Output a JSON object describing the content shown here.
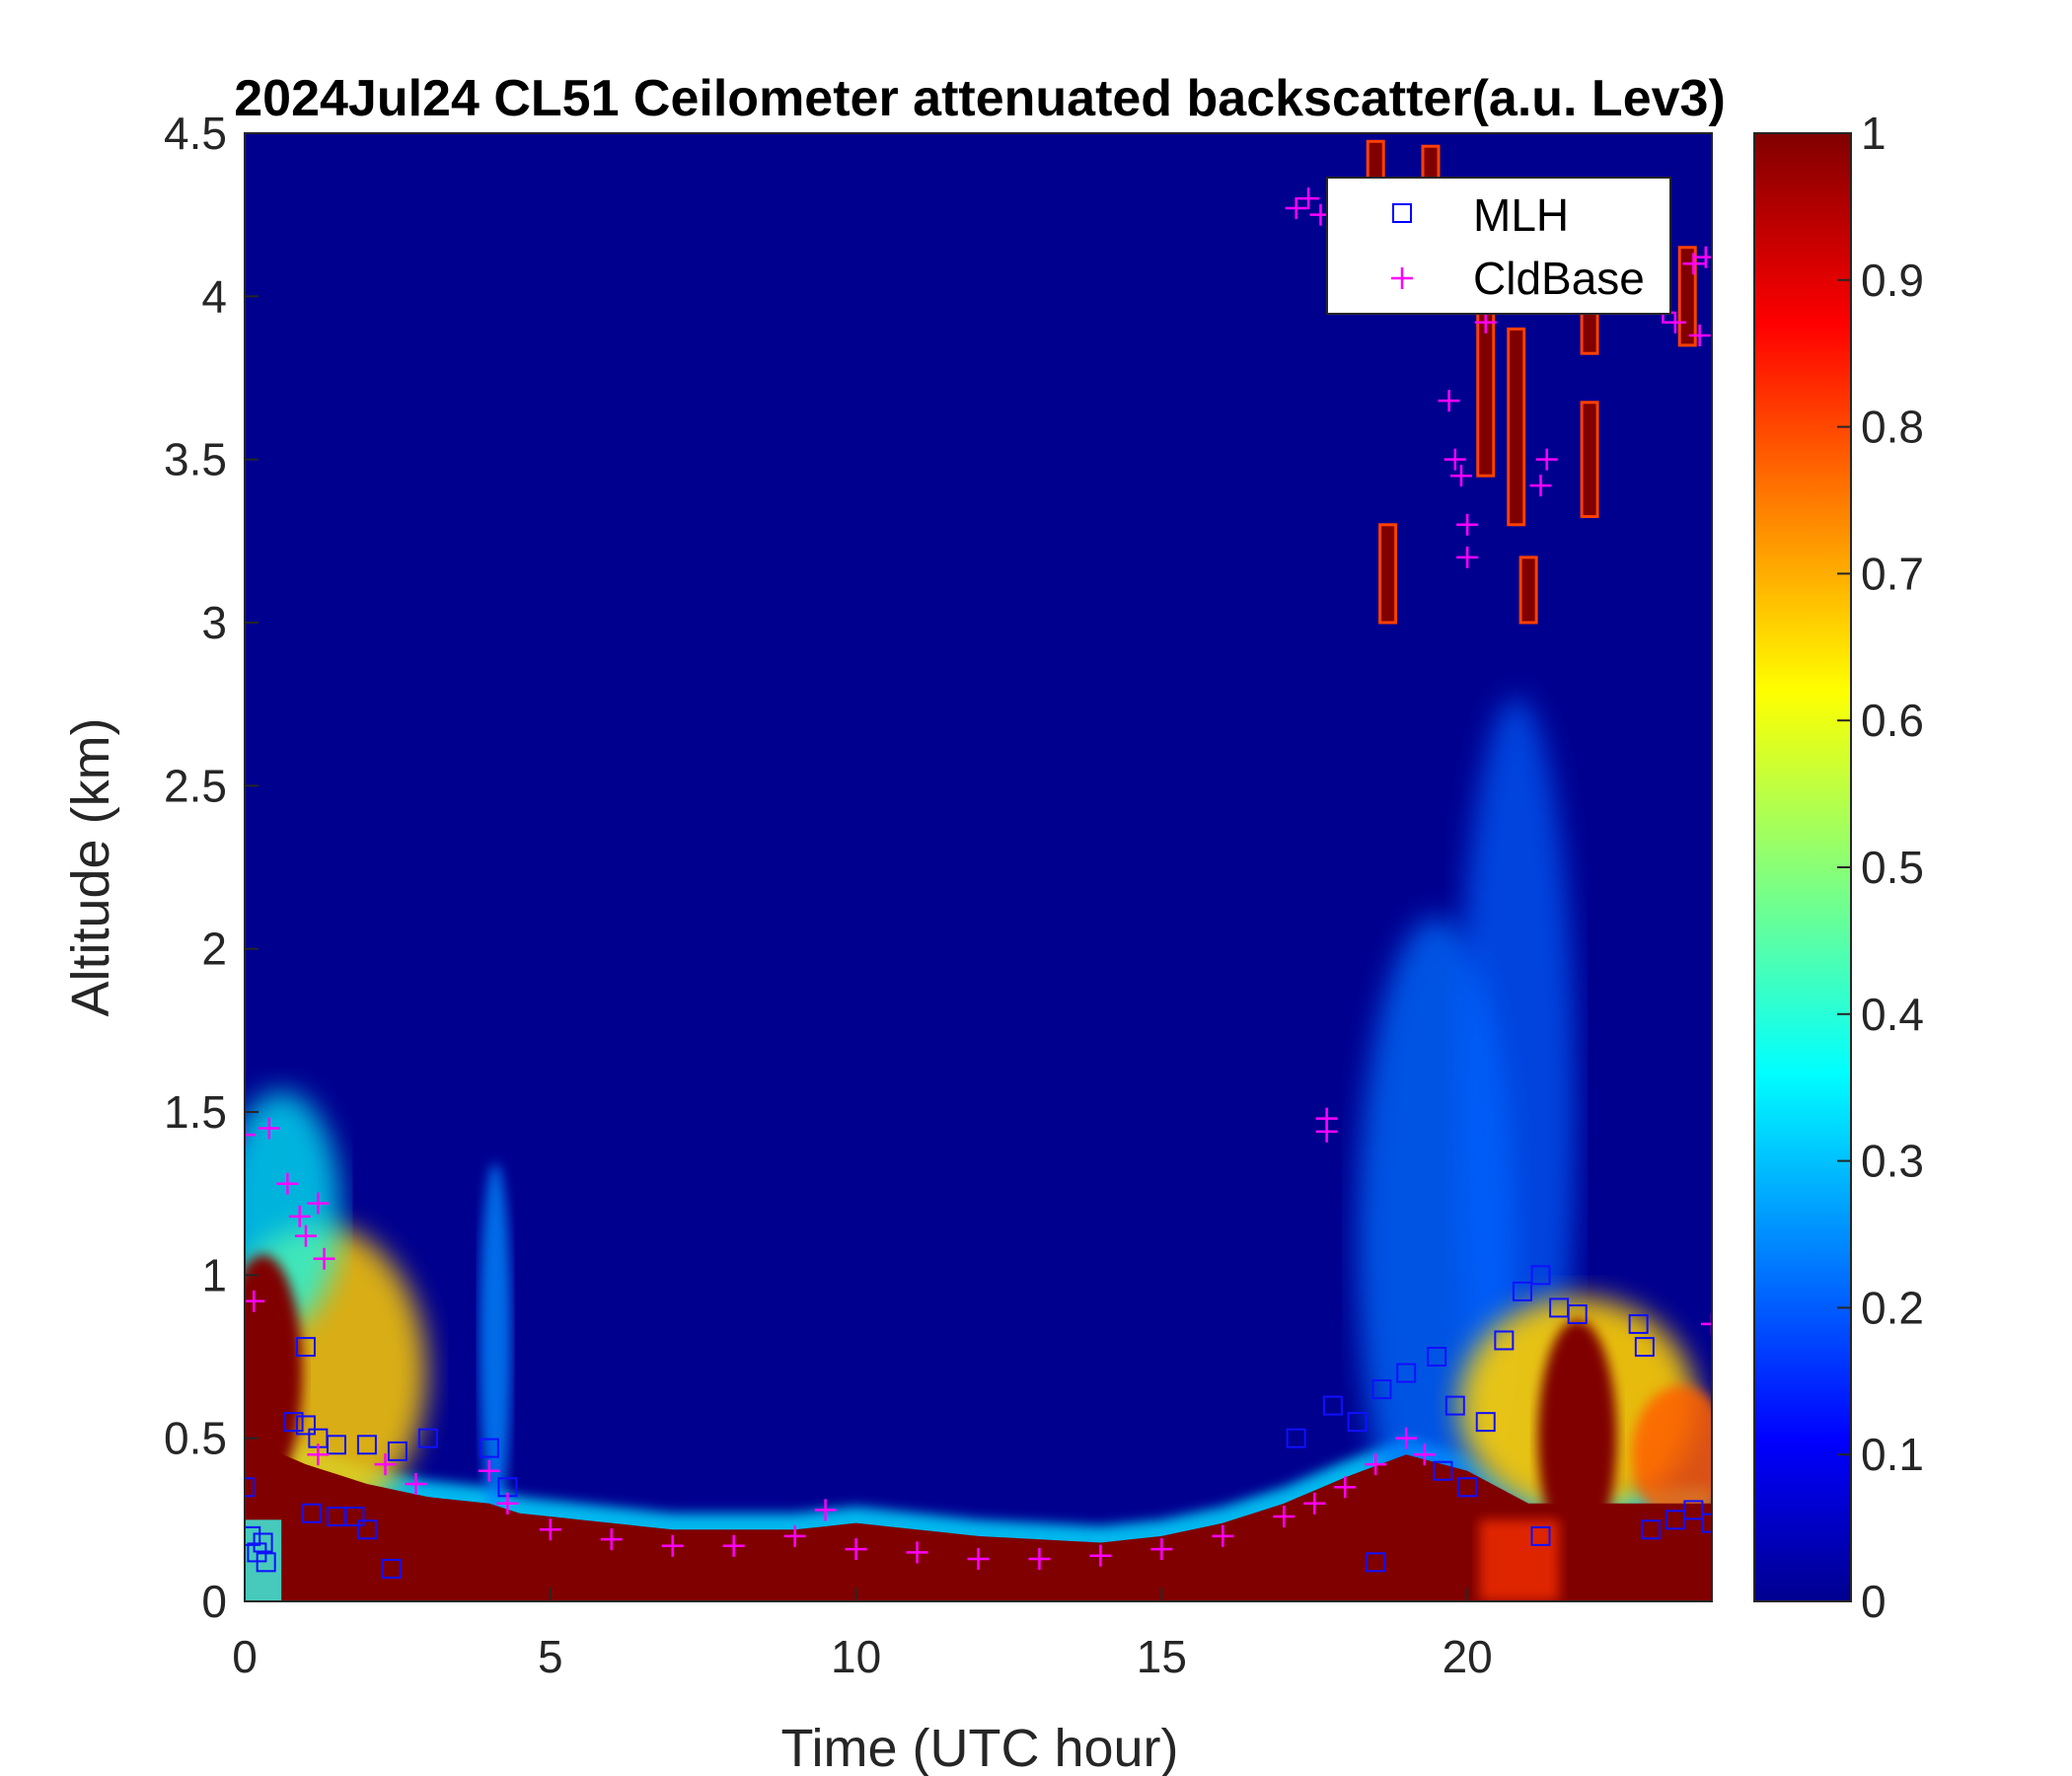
{
  "chart_data": {
    "type": "heatmap",
    "title": "2024Jul24 CL51 Ceilometer attenuated backscatter(a.u. Lev3)",
    "xlabel": "Time (UTC hour)",
    "ylabel": "Altitude (km)",
    "xlim": [
      0,
      24
    ],
    "ylim": [
      0,
      4.5
    ],
    "x_ticks": [
      0,
      5,
      10,
      15,
      20
    ],
    "x_tick_labels": [
      "0",
      "5",
      "10",
      "15",
      "20"
    ],
    "y_ticks": [
      0,
      0.5,
      1,
      1.5,
      2,
      2.5,
      3,
      3.5,
      4,
      4.5
    ],
    "y_tick_labels": [
      "0",
      "0.5",
      "1",
      "1.5",
      "2",
      "2.5",
      "3",
      "3.5",
      "4",
      "4.5"
    ],
    "colorbar": {
      "colormap": "jet",
      "range": [
        0,
        1
      ],
      "ticks": [
        0,
        0.1,
        0.2,
        0.3,
        0.4,
        0.5,
        0.6,
        0.7,
        0.8,
        0.9,
        1
      ],
      "tick_labels": [
        "0",
        "0.1",
        "0.2",
        "0.3",
        "0.4",
        "0.5",
        "0.6",
        "0.7",
        "0.8",
        "0.9",
        "1"
      ]
    },
    "legend": {
      "position": "top-right",
      "entries": [
        {
          "label": "MLH",
          "marker": "square",
          "color": "#0000ff"
        },
        {
          "label": "CldBase",
          "marker": "plus",
          "color": "#ff00ff"
        }
      ]
    },
    "boundary_layer_top_km": {
      "x": [
        0,
        1,
        2,
        3,
        4,
        4.5,
        5,
        7,
        9,
        10,
        12,
        14,
        15,
        16,
        17,
        18,
        19,
        20,
        21,
        22,
        23,
        24
      ],
      "y": [
        0.5,
        0.42,
        0.36,
        0.32,
        0.3,
        0.27,
        0.26,
        0.22,
        0.22,
        0.24,
        0.2,
        0.18,
        0.2,
        0.24,
        0.3,
        0.38,
        0.45,
        0.4,
        0.3,
        0.3,
        0.3,
        0.3
      ]
    },
    "series": [
      {
        "name": "MLH",
        "points": [
          [
            0,
            0.35
          ],
          [
            0.1,
            0.2
          ],
          [
            0.2,
            0.15
          ],
          [
            0.3,
            0.18
          ],
          [
            0.35,
            0.12
          ],
          [
            1,
            0.78
          ],
          [
            0.8,
            0.55
          ],
          [
            1.0,
            0.54
          ],
          [
            1.2,
            0.5
          ],
          [
            1.5,
            0.48
          ],
          [
            2.0,
            0.48
          ],
          [
            2.5,
            0.46
          ],
          [
            1.1,
            0.27
          ],
          [
            1.5,
            0.26
          ],
          [
            1.8,
            0.26
          ],
          [
            2.0,
            0.22
          ],
          [
            2.4,
            0.1
          ],
          [
            3.0,
            0.5
          ],
          [
            4.0,
            0.47
          ],
          [
            4.3,
            0.35
          ],
          [
            17.2,
            0.5
          ],
          [
            17.8,
            0.6
          ],
          [
            18.2,
            0.55
          ],
          [
            18.6,
            0.65
          ],
          [
            19.0,
            0.7
          ],
          [
            19.5,
            0.75
          ],
          [
            19.8,
            0.6
          ],
          [
            19.6,
            0.4
          ],
          [
            20.0,
            0.35
          ],
          [
            20.3,
            0.55
          ],
          [
            20.6,
            0.8
          ],
          [
            20.9,
            0.95
          ],
          [
            21.2,
            1.0
          ],
          [
            21.5,
            0.9
          ],
          [
            21.8,
            0.88
          ],
          [
            21.2,
            0.2
          ],
          [
            22.8,
            0.85
          ],
          [
            22.9,
            0.78
          ],
          [
            23.0,
            0.22
          ],
          [
            23.4,
            0.25
          ],
          [
            23.7,
            0.28
          ],
          [
            24.0,
            0.24
          ],
          [
            18.5,
            0.12
          ]
        ]
      },
      {
        "name": "CldBase",
        "points": [
          [
            0,
            1.43
          ],
          [
            0.4,
            1.45
          ],
          [
            0.15,
            0.92
          ],
          [
            0.7,
            1.28
          ],
          [
            0.9,
            1.18
          ],
          [
            1.0,
            1.12
          ],
          [
            1.2,
            1.22
          ],
          [
            1.3,
            1.05
          ],
          [
            1.2,
            0.45
          ],
          [
            2.3,
            0.42
          ],
          [
            2.8,
            0.36
          ],
          [
            4.0,
            0.4
          ],
          [
            4.3,
            0.3
          ],
          [
            5,
            0.22
          ],
          [
            6,
            0.19
          ],
          [
            7,
            0.17
          ],
          [
            8,
            0.17
          ],
          [
            9,
            0.2
          ],
          [
            9.5,
            0.28
          ],
          [
            10,
            0.16
          ],
          [
            11,
            0.15
          ],
          [
            12,
            0.13
          ],
          [
            13,
            0.13
          ],
          [
            14,
            0.14
          ],
          [
            15,
            0.16
          ],
          [
            16,
            0.2
          ],
          [
            17,
            0.26
          ],
          [
            17.5,
            0.3
          ],
          [
            18,
            0.35
          ],
          [
            18.5,
            0.42
          ],
          [
            19,
            0.5
          ],
          [
            19.3,
            0.45
          ],
          [
            17.2,
            4.27
          ],
          [
            17.4,
            4.3
          ],
          [
            17.6,
            4.25
          ],
          [
            17.7,
            1.48
          ],
          [
            17.7,
            1.44
          ],
          [
            19.7,
            3.68
          ],
          [
            19.8,
            3.5
          ],
          [
            19.9,
            3.45
          ],
          [
            20.0,
            3.3
          ],
          [
            20.0,
            3.2
          ],
          [
            20.3,
            3.92
          ],
          [
            21.3,
            3.5
          ],
          [
            21.2,
            3.42
          ],
          [
            23.2,
            3.95
          ],
          [
            23.4,
            3.92
          ],
          [
            23.7,
            4.1
          ],
          [
            23.9,
            4.12
          ],
          [
            23.8,
            3.88
          ],
          [
            24.0,
            0.85
          ]
        ]
      }
    ]
  }
}
